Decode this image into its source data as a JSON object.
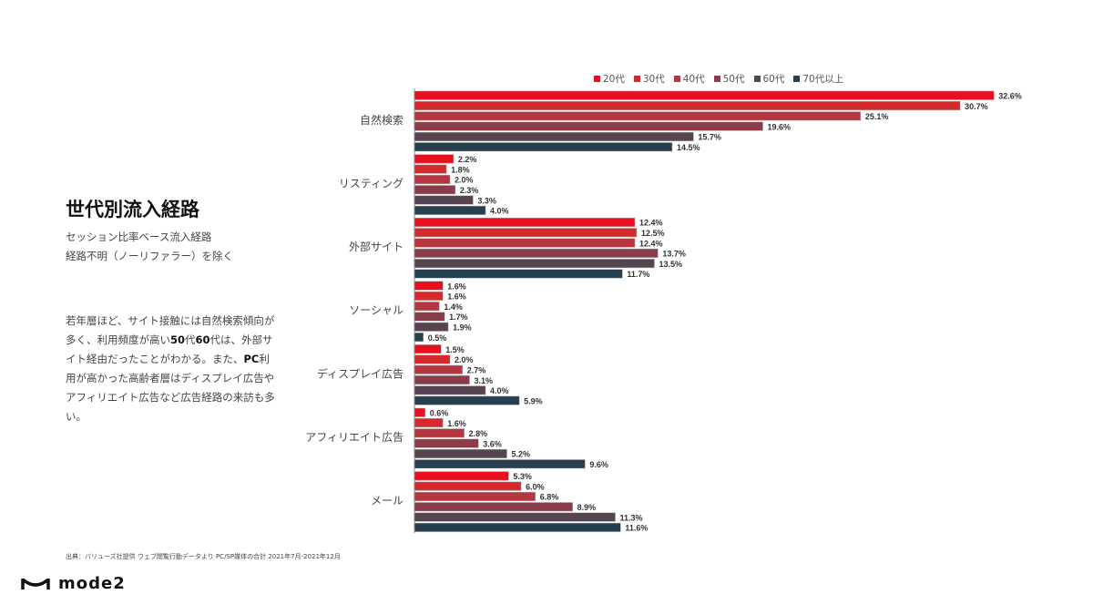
{
  "title": "世代別流入経路",
  "subtitle_lines": [
    "セッション比率ベース流入経路",
    "経路不明（ノーリファラー）を除く"
  ],
  "description": {
    "part1": "若年層ほど、サイト接触には自然検索傾向が多く、利用頻度が高い",
    "bold1": "50",
    "part2": "代",
    "bold2": "60",
    "part3": "代は、外部サイト経由だったことがわかる。また、",
    "bold3": "PC",
    "part4": "利用が高かった高齢者層はディスプレイ広告やアフィリエイト広告など広告経路の来訪も多い。"
  },
  "source_note": "出典：バリューズ社提供 ウェブ閲覧行動データより PC/SP媒体の合計 2021年7月-2021年12月",
  "logo_text": "mode2",
  "chart_data": {
    "type": "bar",
    "orientation": "horizontal",
    "categories": [
      "自然検索",
      "リスティング",
      "外部サイト",
      "ソーシャル",
      "ディスプレイ広告",
      "アフィリエイト広告",
      "メール"
    ],
    "series": [
      {
        "name": "20代",
        "color": "#e8101e",
        "values": [
          32.6,
          2.2,
          12.4,
          1.6,
          1.5,
          0.6,
          5.3
        ]
      },
      {
        "name": "30代",
        "color": "#d42a2e",
        "values": [
          30.7,
          1.8,
          12.5,
          1.6,
          2.0,
          1.6,
          6.0
        ]
      },
      {
        "name": "40代",
        "color": "#b5363f",
        "values": [
          25.1,
          2.0,
          12.4,
          1.4,
          2.7,
          2.8,
          6.8
        ]
      },
      {
        "name": "50代",
        "color": "#8b3c49",
        "values": [
          19.6,
          2.3,
          13.7,
          1.7,
          3.1,
          3.6,
          8.9
        ]
      },
      {
        "name": "60代",
        "color": "#574451",
        "values": [
          15.7,
          3.3,
          13.5,
          1.9,
          4.0,
          5.2,
          11.3
        ]
      },
      {
        "name": "70代以上",
        "color": "#27404f",
        "values": [
          14.5,
          4.0,
          11.7,
          0.5,
          5.9,
          9.6,
          11.6
        ]
      }
    ],
    "value_suffix": "%",
    "xlim": [
      0,
      33
    ],
    "grid": false,
    "legend_position": "top"
  }
}
